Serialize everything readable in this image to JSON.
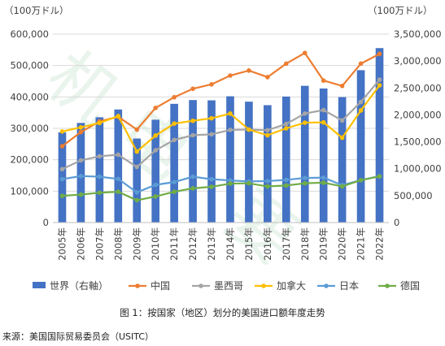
{
  "figure": {
    "caption": "图 1：按国家（地区）划分的美国进口额年度走势",
    "source": "来源：美国国际贸易委员会（USITC）",
    "watermark": "机电 要"
  },
  "chart_data": {
    "type": "bar",
    "title": "",
    "left_unit_label": "（100万ドル）",
    "right_unit_label": "（100万ドル）",
    "categories": [
      "2005年",
      "2006年",
      "2007年",
      "2008年",
      "2009年",
      "2010年",
      "2011年",
      "2012年",
      "2013年",
      "2014年",
      "2015年",
      "2016年",
      "2017年",
      "2018年",
      "2019年",
      "2020年",
      "2021年",
      "2022年"
    ],
    "y_left": {
      "min": 0,
      "max": 600000,
      "ticks": [
        "0",
        "100,000",
        "200,000",
        "300,000",
        "400,000",
        "500,000",
        "600,000"
      ]
    },
    "y_right": {
      "min": 0,
      "max": 3500000,
      "ticks": [
        "0",
        "500,000",
        "1,000,000",
        "1,500,000",
        "2,000,000",
        "2,500,000",
        "3,000,000",
        "3,500,000"
      ]
    },
    "grid": true,
    "legend_position": "bottom",
    "bar_series": {
      "name": "世界（右軸）",
      "axis": "right",
      "color": "#4472c4",
      "values": [
        1675000,
        1850000,
        1955000,
        2100000,
        1560000,
        1910000,
        2205000,
        2275000,
        2270000,
        2345000,
        2245000,
        2180000,
        2340000,
        2540000,
        2490000,
        2330000,
        2830000,
        3240000
      ]
    },
    "line_series": [
      {
        "name": "中国",
        "color": "#ed7d31",
        "values": [
          243000,
          288000,
          322000,
          337000,
          296000,
          365000,
          399000,
          426000,
          440000,
          468000,
          484000,
          463000,
          506000,
          540000,
          452000,
          435000,
          506000,
          537000
        ]
      },
      {
        "name": "墨西哥",
        "color": "#a5a5a5",
        "values": [
          170000,
          198000,
          211000,
          216000,
          177000,
          230000,
          263000,
          278000,
          281000,
          295000,
          296000,
          294000,
          314000,
          347000,
          358000,
          325000,
          384000,
          455000
        ]
      },
      {
        "name": "加拿大",
        "color": "#ffc000",
        "values": [
          290000,
          303000,
          317000,
          339000,
          226000,
          277000,
          315000,
          324000,
          332000,
          347000,
          296000,
          278000,
          300000,
          318000,
          319000,
          270000,
          357000,
          437000
        ]
      },
      {
        "name": "日本",
        "color": "#5b9bd5",
        "values": [
          138000,
          148000,
          146000,
          139000,
          96000,
          120000,
          129000,
          146000,
          138000,
          134000,
          131000,
          132000,
          136000,
          142000,
          143000,
          119000,
          135000,
          148000
        ]
      },
      {
        "name": "德国",
        "color": "#70ad47",
        "values": [
          85000,
          89000,
          95000,
          98000,
          71000,
          83000,
          98000,
          109000,
          114000,
          124000,
          125000,
          115000,
          118000,
          125000,
          127000,
          115000,
          135000,
          147000
        ]
      }
    ]
  }
}
